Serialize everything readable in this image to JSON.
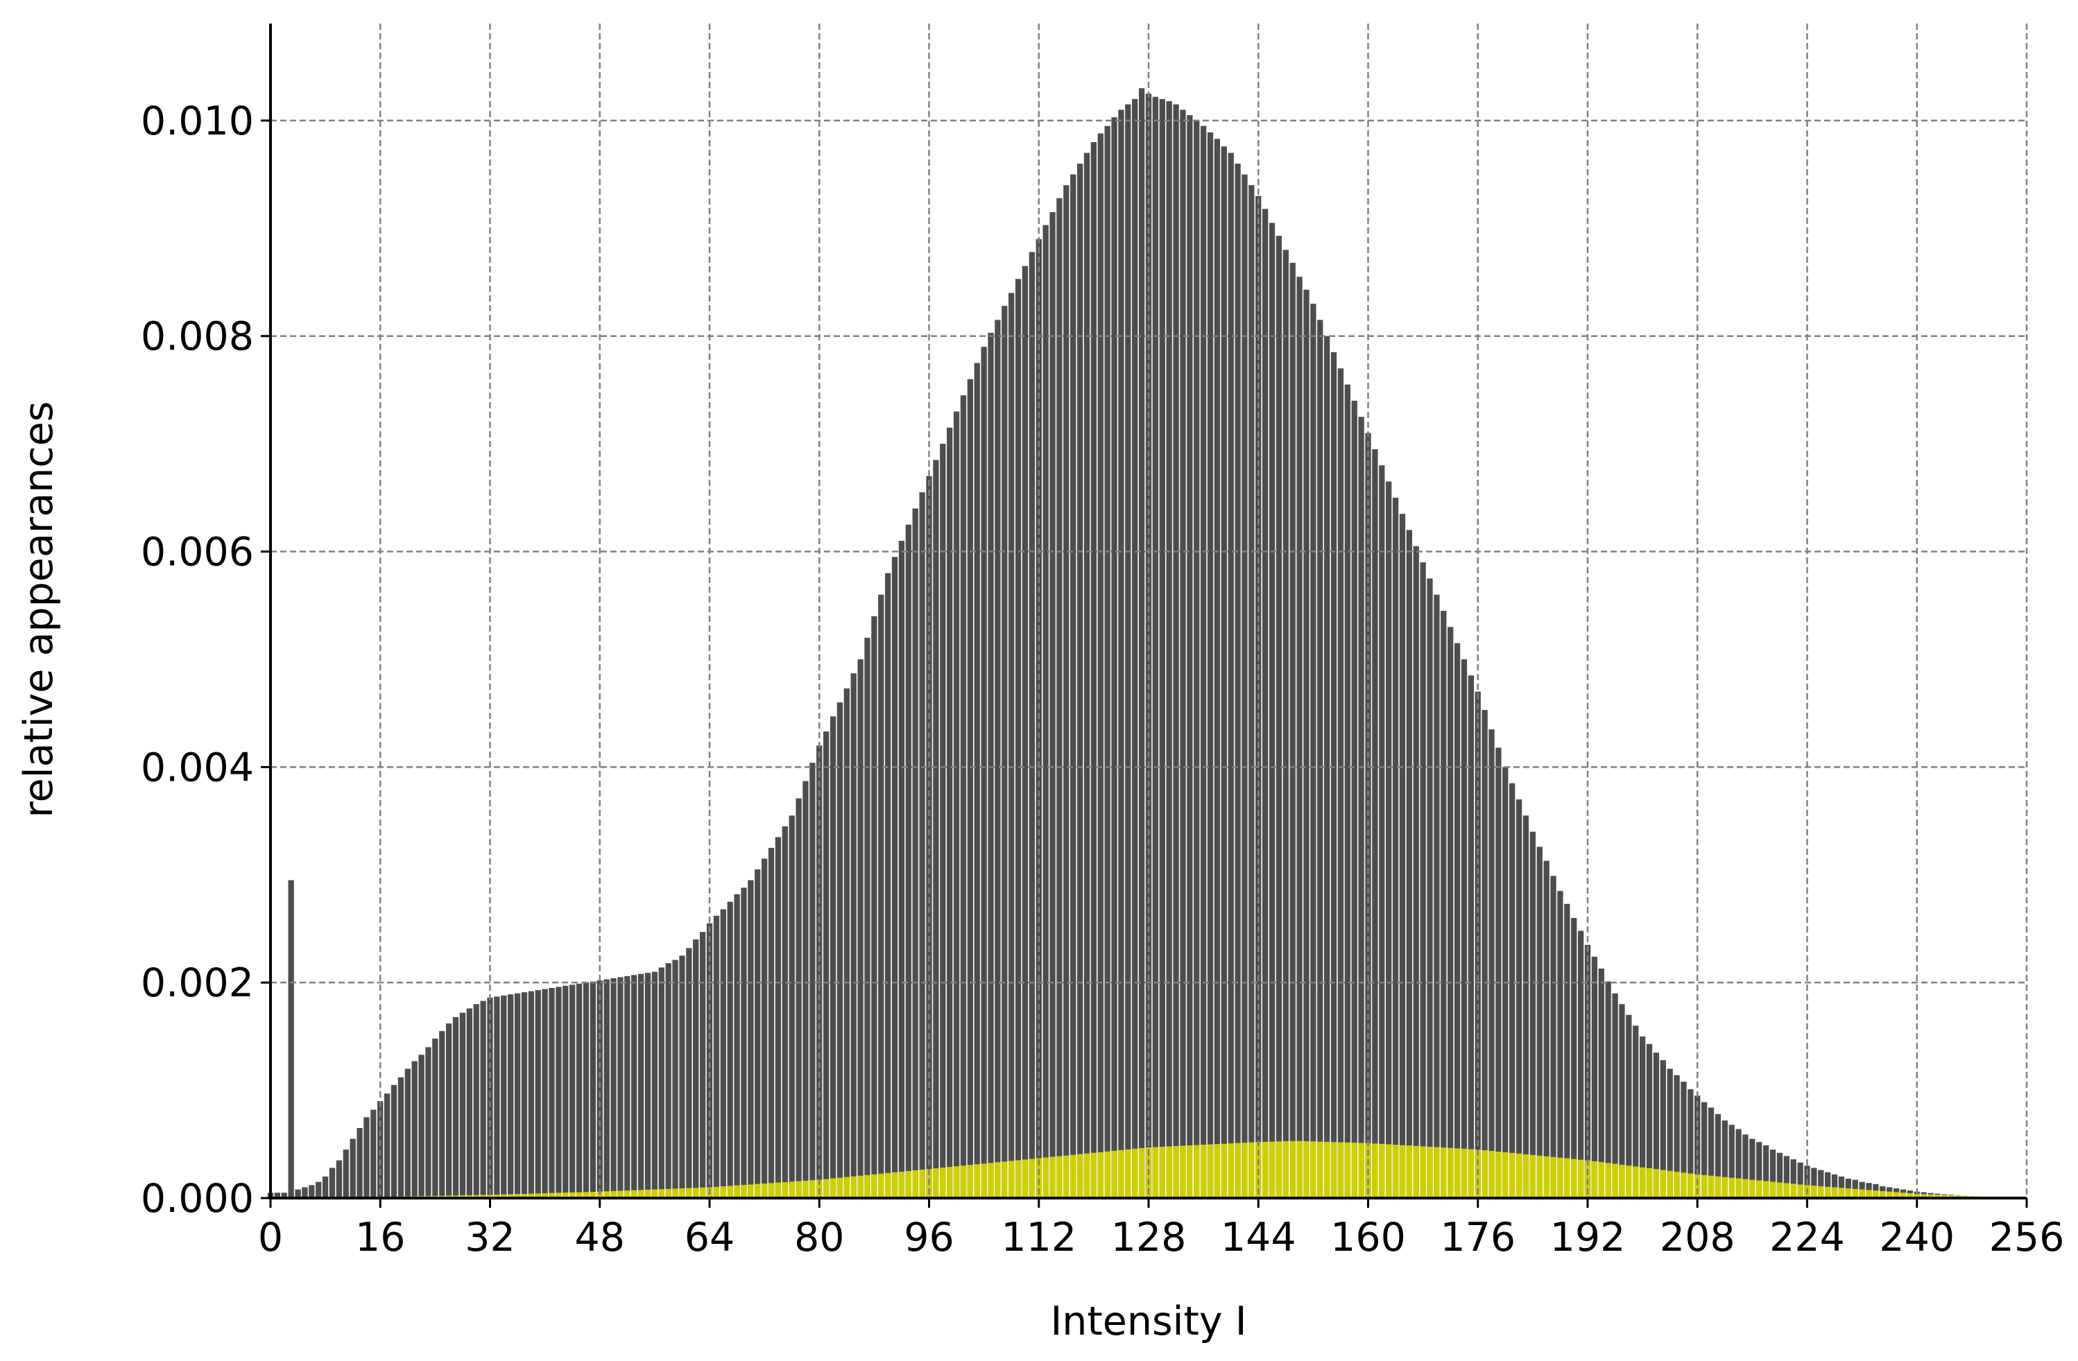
{
  "chart_data": {
    "type": "bar",
    "xlabel": "Intensity I",
    "ylabel": "relative appearances",
    "x": [
      0,
      1,
      2,
      3,
      4,
      5,
      6,
      7,
      8,
      9,
      10,
      11,
      12,
      13,
      14,
      15,
      16,
      17,
      18,
      19,
      20,
      21,
      22,
      23,
      24,
      25,
      26,
      27,
      28,
      29,
      30,
      31,
      32,
      33,
      34,
      35,
      36,
      37,
      38,
      39,
      40,
      41,
      42,
      43,
      44,
      45,
      46,
      47,
      48,
      49,
      50,
      51,
      52,
      53,
      54,
      55,
      56,
      57,
      58,
      59,
      60,
      61,
      62,
      63,
      64,
      65,
      66,
      67,
      68,
      69,
      70,
      71,
      72,
      73,
      74,
      75,
      76,
      77,
      78,
      79,
      80,
      81,
      82,
      83,
      84,
      85,
      86,
      87,
      88,
      89,
      90,
      91,
      92,
      93,
      94,
      95,
      96,
      97,
      98,
      99,
      100,
      101,
      102,
      103,
      104,
      105,
      106,
      107,
      108,
      109,
      110,
      111,
      112,
      113,
      114,
      115,
      116,
      117,
      118,
      119,
      120,
      121,
      122,
      123,
      124,
      125,
      126,
      127,
      128,
      129,
      130,
      131,
      132,
      133,
      134,
      135,
      136,
      137,
      138,
      139,
      140,
      141,
      142,
      143,
      144,
      145,
      146,
      147,
      148,
      149,
      150,
      151,
      152,
      153,
      154,
      155,
      156,
      157,
      158,
      159,
      160,
      161,
      162,
      163,
      164,
      165,
      166,
      167,
      168,
      169,
      170,
      171,
      172,
      173,
      174,
      175,
      176,
      177,
      178,
      179,
      180,
      181,
      182,
      183,
      184,
      185,
      186,
      187,
      188,
      189,
      190,
      191,
      192,
      193,
      194,
      195,
      196,
      197,
      198,
      199,
      200,
      201,
      202,
      203,
      204,
      205,
      206,
      207,
      208,
      209,
      210,
      211,
      212,
      213,
      214,
      215,
      216,
      217,
      218,
      219,
      220,
      221,
      222,
      223,
      224,
      225,
      226,
      227,
      228,
      229,
      230,
      231,
      232,
      233,
      234,
      235,
      236,
      237,
      238,
      239,
      240,
      241,
      242,
      243,
      244,
      245,
      246,
      247,
      248,
      249,
      250,
      251,
      252,
      253,
      254,
      255
    ],
    "series": [
      {
        "color": "#4d4d4d",
        "values": [
          5e-05,
          5e-05,
          5e-05,
          0.00295,
          8e-05,
          0.0001,
          0.00012,
          0.00015,
          0.0002,
          0.00028,
          0.00035,
          0.00045,
          0.00055,
          0.00065,
          0.00075,
          0.00082,
          0.0009,
          0.00097,
          0.00105,
          0.00112,
          0.0012,
          0.00127,
          0.00133,
          0.0014,
          0.00148,
          0.00155,
          0.00162,
          0.00168,
          0.00172,
          0.00176,
          0.0018,
          0.00183,
          0.00186,
          0.00187,
          0.00188,
          0.00189,
          0.0019,
          0.00191,
          0.00192,
          0.00193,
          0.00194,
          0.00195,
          0.00196,
          0.00197,
          0.00198,
          0.00199,
          0.002,
          0.00201,
          0.00202,
          0.00203,
          0.00204,
          0.00205,
          0.00206,
          0.00207,
          0.00208,
          0.00209,
          0.0021,
          0.00214,
          0.00218,
          0.00221,
          0.00225,
          0.00232,
          0.0024,
          0.00247,
          0.00255,
          0.00262,
          0.00268,
          0.00275,
          0.00282,
          0.00288,
          0.00295,
          0.00305,
          0.00315,
          0.00325,
          0.00335,
          0.00345,
          0.00355,
          0.00371,
          0.00387,
          0.00404,
          0.0042,
          0.00433,
          0.00447,
          0.0046,
          0.00473,
          0.00487,
          0.005,
          0.0052,
          0.0054,
          0.0056,
          0.0058,
          0.00595,
          0.0061,
          0.00625,
          0.0064,
          0.00655,
          0.0067,
          0.00685,
          0.007,
          0.00715,
          0.0073,
          0.00745,
          0.0076,
          0.00775,
          0.0079,
          0.00803,
          0.00815,
          0.00828,
          0.0084,
          0.00853,
          0.00865,
          0.00878,
          0.0089,
          0.00903,
          0.00915,
          0.00928,
          0.0094,
          0.0095,
          0.0096,
          0.0097,
          0.0098,
          0.00988,
          0.00995,
          0.01003,
          0.0101,
          0.01015,
          0.0102,
          0.0103,
          0.01025,
          0.01022,
          0.0102,
          0.01018,
          0.01015,
          0.0101,
          0.01005,
          0.01,
          0.00995,
          0.00989,
          0.00983,
          0.00976,
          0.0097,
          0.0096,
          0.0095,
          0.0094,
          0.0093,
          0.00918,
          0.00905,
          0.00893,
          0.0088,
          0.00868,
          0.00855,
          0.00843,
          0.0083,
          0.00815,
          0.008,
          0.00785,
          0.0077,
          0.00755,
          0.0074,
          0.00725,
          0.0071,
          0.00695,
          0.0068,
          0.00665,
          0.0065,
          0.00635,
          0.0062,
          0.00605,
          0.0059,
          0.00575,
          0.0056,
          0.00545,
          0.0053,
          0.00515,
          0.005,
          0.00485,
          0.0047,
          0.00453,
          0.00435,
          0.00418,
          0.004,
          0.00385,
          0.0037,
          0.00355,
          0.0034,
          0.00326,
          0.00313,
          0.00299,
          0.00285,
          0.00273,
          0.0026,
          0.00248,
          0.00235,
          0.00224,
          0.00213,
          0.00201,
          0.0019,
          0.0018,
          0.0017,
          0.0016,
          0.0015,
          0.00143,
          0.00135,
          0.00128,
          0.0012,
          0.00114,
          0.00108,
          0.00101,
          0.00095,
          0.00089,
          0.00084,
          0.00078,
          0.00072,
          0.00068,
          0.00064,
          0.00059,
          0.00055,
          0.00052,
          0.00049,
          0.00045,
          0.00042,
          0.00039,
          0.00036,
          0.00033,
          0.0003,
          0.00028,
          0.00026,
          0.00024,
          0.00022,
          0.0002,
          0.00018,
          0.00017,
          0.00015,
          0.00014,
          0.00013,
          0.00011,
          0.0001,
          9e-05,
          8e-05,
          7e-05,
          6e-05,
          5.4e-05,
          4.7e-05,
          4.1e-05,
          3.5e-05,
          3e-05,
          2.5e-05,
          2e-05,
          1.5e-05,
          1.3e-05,
          1e-05,
          8e-06,
          5e-06,
          4e-06,
          3e-06,
          2e-06
        ]
      },
      {
        "color": "#cfcf00",
        "values": [
          0,
          0,
          0,
          0,
          1e-06,
          1e-06,
          2e-06,
          2e-06,
          3e-06,
          3e-06,
          4e-06,
          5e-06,
          6e-06,
          7e-06,
          8e-06,
          9e-06,
          1e-05,
          1.1e-05,
          1.3e-05,
          1.4e-05,
          1.5e-05,
          1.6e-05,
          1.8e-05,
          1.9e-05,
          2e-05,
          2.1e-05,
          2.3e-05,
          2.4e-05,
          2.5e-05,
          2.6e-05,
          2.8e-05,
          2.9e-05,
          3e-05,
          3.2e-05,
          3.4e-05,
          3.6e-05,
          3.8e-05,
          3.9e-05,
          4.1e-05,
          4.3e-05,
          4.5e-05,
          4.7e-05,
          4.9e-05,
          5.1e-05,
          5.3e-05,
          5.4e-05,
          5.6e-05,
          5.8e-05,
          6e-05,
          6.3e-05,
          6.5e-05,
          6.8e-05,
          7e-05,
          7.3e-05,
          7.5e-05,
          7.8e-05,
          8e-05,
          8.3e-05,
          8.5e-05,
          8.8e-05,
          9e-05,
          9.3e-05,
          9.5e-05,
          9.8e-05,
          0.0001,
          0.000104,
          0.000109,
          0.000113,
          0.000118,
          0.000122,
          0.000126,
          0.000131,
          0.000135,
          0.000139,
          0.000144,
          0.000148,
          0.000153,
          0.000157,
          0.000161,
          0.000166,
          0.00017,
          0.000176,
          0.000183,
          0.000189,
          0.000195,
          0.000201,
          0.000208,
          0.000214,
          0.00022,
          0.000226,
          0.000233,
          0.000239,
          0.000245,
          0.000251,
          0.000258,
          0.000264,
          0.00027,
          0.000276,
          0.000283,
          0.000289,
          0.000295,
          0.000301,
          0.000308,
          0.000314,
          0.00032,
          0.000326,
          0.000333,
          0.000339,
          0.000345,
          0.000351,
          0.000358,
          0.000364,
          0.00037,
          0.000376,
          0.000383,
          0.000389,
          0.000395,
          0.000401,
          0.000408,
          0.000414,
          0.00042,
          0.000426,
          0.000433,
          0.000439,
          0.000445,
          0.000451,
          0.000458,
          0.000464,
          0.00047,
          0.000473,
          0.000476,
          0.000479,
          0.000483,
          0.000486,
          0.000489,
          0.000492,
          0.000495,
          0.000498,
          0.000501,
          0.000504,
          0.000508,
          0.000511,
          0.000514,
          0.000517,
          0.00052,
          0.000522,
          0.000524,
          0.000526,
          0.000528,
          0.000529,
          0.00053,
          0.000528,
          0.000526,
          0.000524,
          0.000522,
          0.00052,
          0.000518,
          0.000516,
          0.000514,
          0.000512,
          0.00051,
          0.000506,
          0.000503,
          0.000499,
          0.000495,
          0.000491,
          0.000488,
          0.000484,
          0.00048,
          0.000476,
          0.000473,
          0.000469,
          0.000465,
          0.000461,
          0.000458,
          0.000454,
          0.00045,
          0.000444,
          0.000438,
          0.000431,
          0.000425,
          0.000419,
          0.000413,
          0.000406,
          0.0004,
          0.000394,
          0.000388,
          0.000381,
          0.000375,
          0.000369,
          0.000363,
          0.000356,
          0.00035,
          0.000342,
          0.000334,
          0.000326,
          0.000318,
          0.000309,
          0.000301,
          0.000293,
          0.000285,
          0.000277,
          0.000269,
          0.000261,
          0.000253,
          0.000244,
          0.000236,
          0.000228,
          0.00022,
          0.000214,
          0.000208,
          0.000201,
          0.000195,
          0.000189,
          0.000183,
          0.000176,
          0.00017,
          0.000164,
          0.000158,
          0.000151,
          0.000145,
          0.000139,
          0.000133,
          0.000126,
          0.00012,
          0.000115,
          0.00011,
          0.000105,
          0.0001,
          9.5e-05,
          9e-05,
          8.5e-05,
          8e-05,
          7.5e-05,
          7e-05,
          6.5e-05,
          6e-05,
          5.5e-05,
          5e-05,
          4.5e-05,
          4e-05,
          3.7e-05,
          3.4e-05,
          3.2e-05,
          2.9e-05,
          2.6e-05,
          2.3e-05,
          2.1e-05,
          1.8e-05,
          1.5e-05,
          1.2e-05,
          1e-05,
          7e-06,
          4e-06,
          2e-06,
          0
        ]
      }
    ],
    "xlim": [
      0,
      256
    ],
    "xticks": [
      0,
      16,
      32,
      48,
      64,
      80,
      96,
      112,
      128,
      144,
      160,
      176,
      192,
      208,
      224,
      240,
      256
    ],
    "ylim": [
      0,
      0.0109
    ],
    "yticks": [
      {
        "value": 0,
        "label": "0.000"
      },
      {
        "value": 0.002,
        "label": "0.002"
      },
      {
        "value": 0.004,
        "label": "0.004"
      },
      {
        "value": 0.006,
        "label": "0.006"
      },
      {
        "value": 0.008,
        "label": "0.008"
      },
      {
        "value": 0.01,
        "label": "0.010"
      }
    ],
    "grid": true
  }
}
